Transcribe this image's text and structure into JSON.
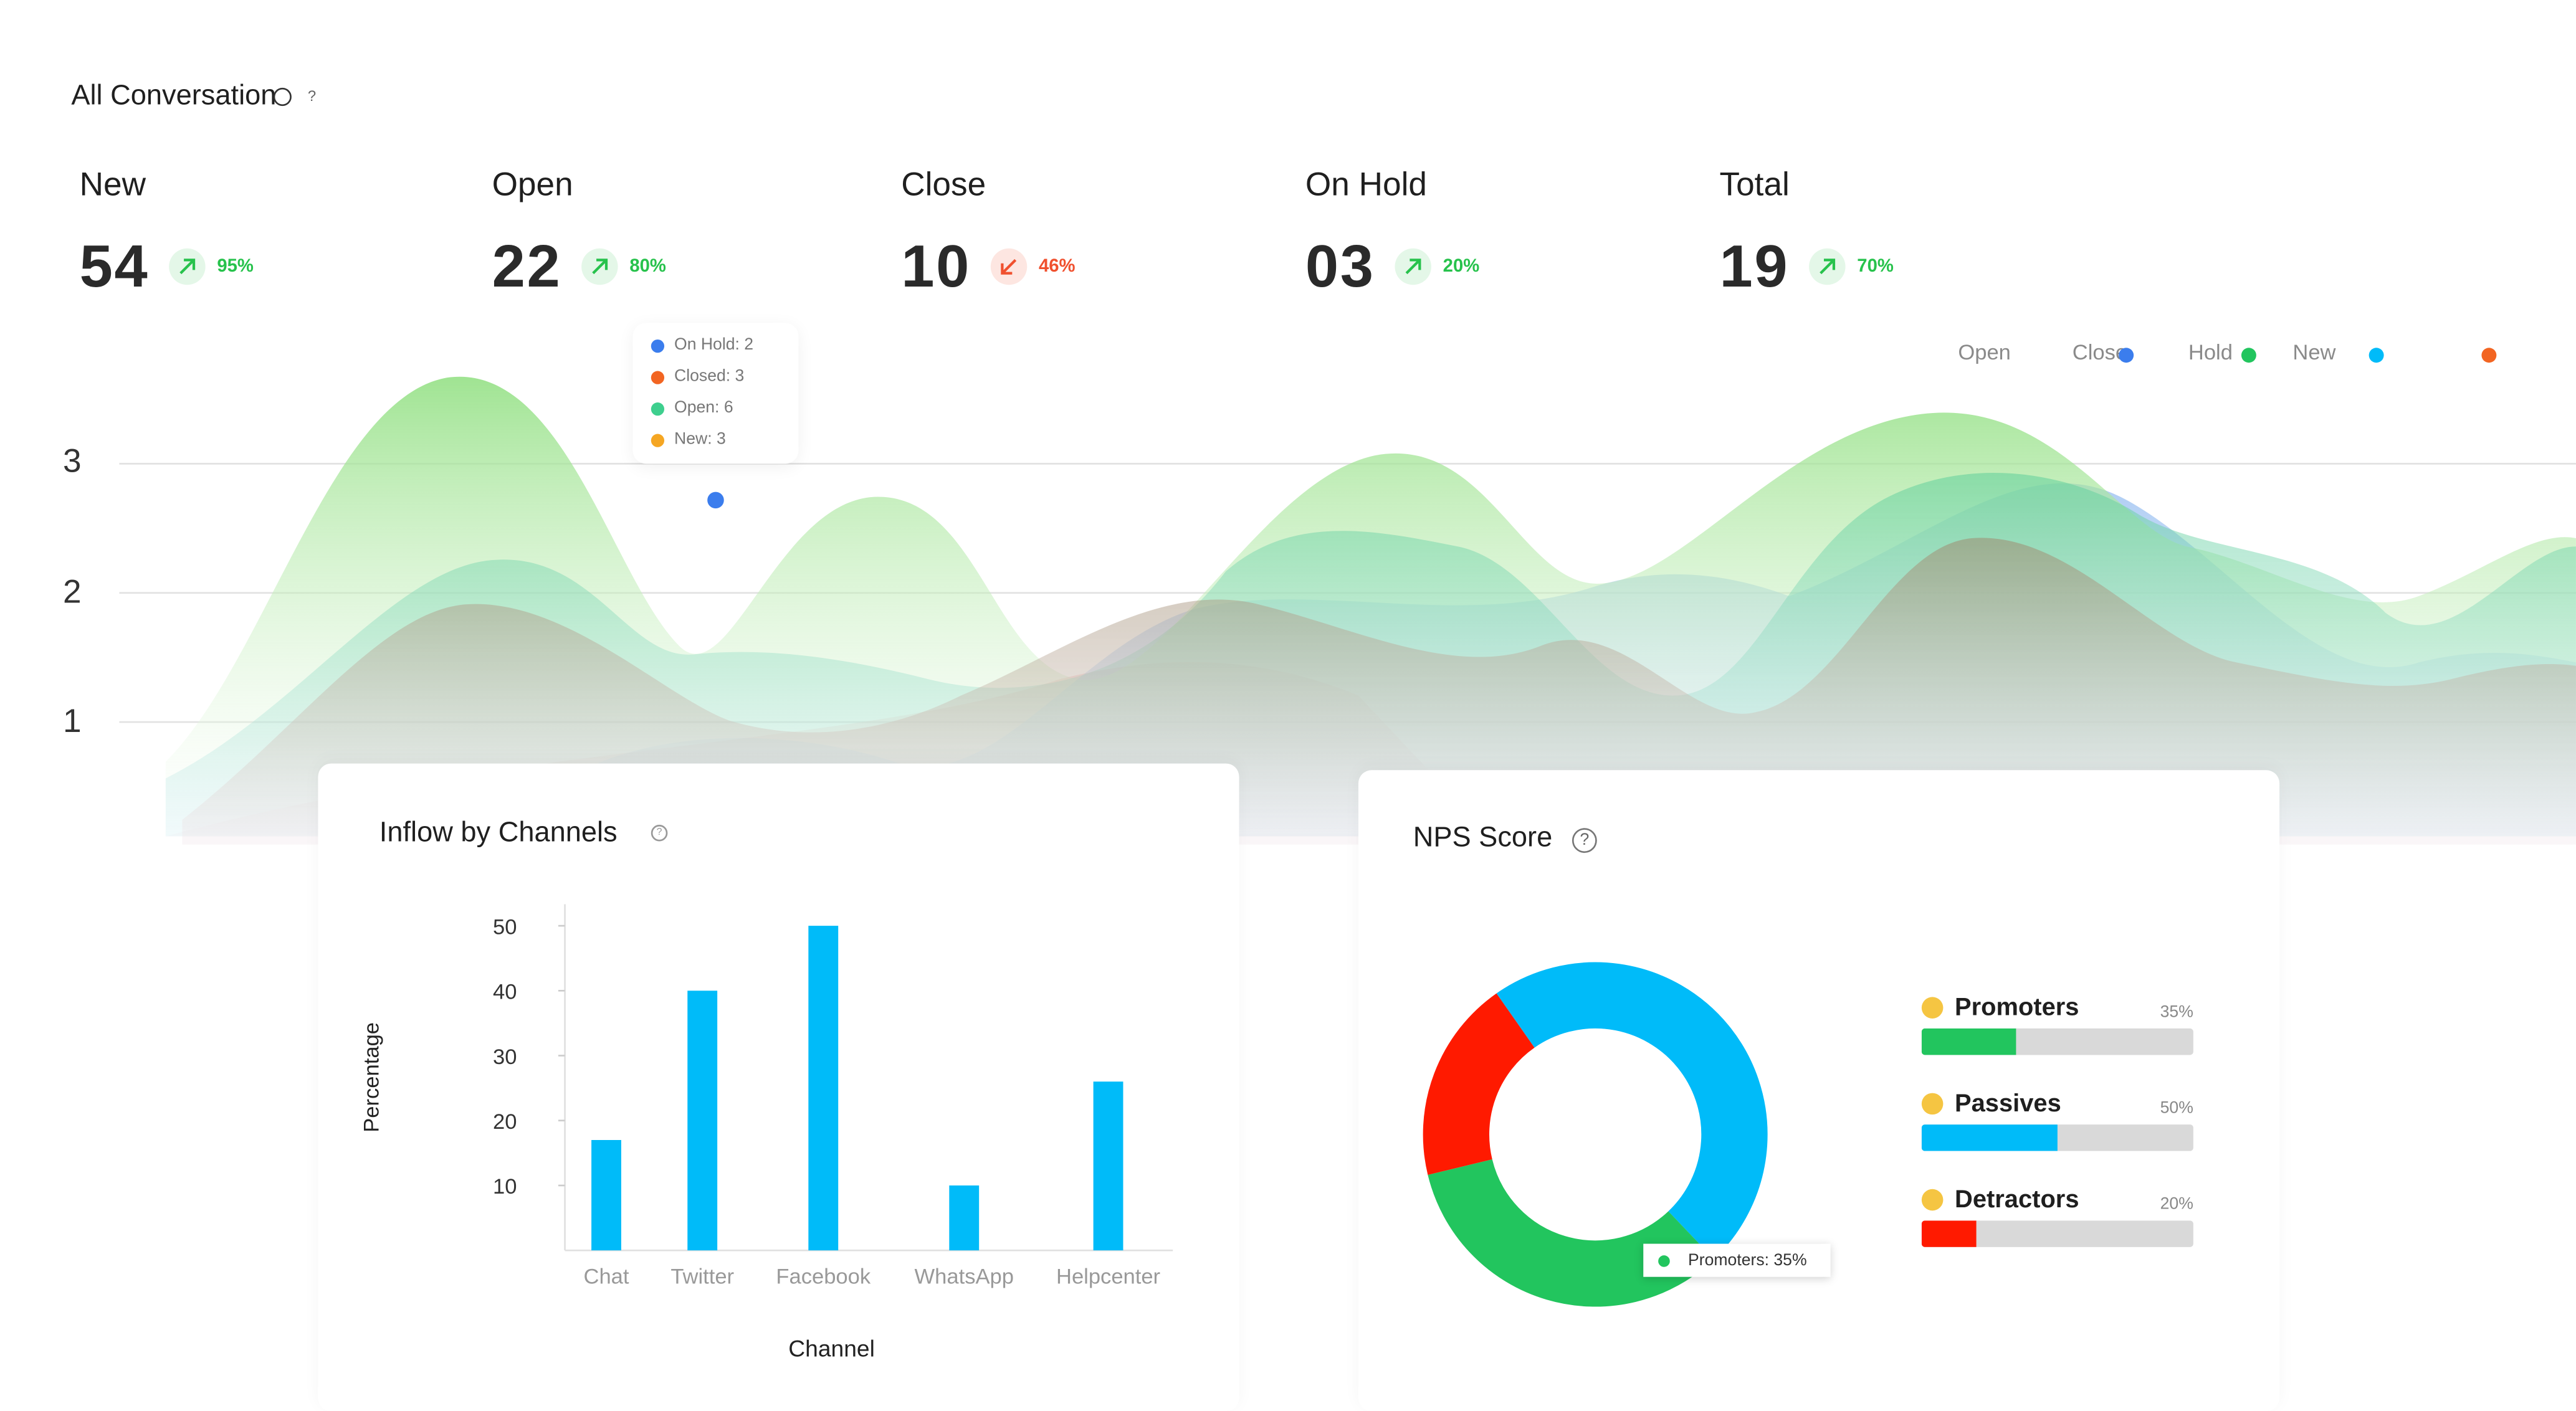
{
  "header": {
    "title": "All Conversation",
    "help": "?"
  },
  "stats": [
    {
      "label": "New",
      "value": "54",
      "trend": "up",
      "pct": "95%"
    },
    {
      "label": "Open",
      "value": "22",
      "trend": "up",
      "pct": "80%"
    },
    {
      "label": "Close",
      "value": "10",
      "trend": "down",
      "pct": "46%"
    },
    {
      "label": "On Hold",
      "value": "03",
      "trend": "up",
      "pct": "20%"
    },
    {
      "label": "Total",
      "value": "19",
      "trend": "up",
      "pct": "70%"
    }
  ],
  "colors": {
    "up": "#27c24c",
    "up_bg": "#e4f7e8",
    "down": "#f0502e",
    "down_bg": "#fde6e1",
    "cyan": "#00bbf9",
    "green": "#22c55e",
    "red": "#ff1a00",
    "blue": "#3b7ded",
    "orange": "#f26522",
    "amber": "#f5a623"
  },
  "area_legend": [
    {
      "label": "Open",
      "color": "#3b7ded"
    },
    {
      "label": "Close",
      "color": "#22c55e"
    },
    {
      "label": "Hold",
      "color": "#00bbf9"
    },
    {
      "label": "New",
      "color": "#f26522"
    }
  ],
  "area_yticks": [
    "3",
    "2",
    "1"
  ],
  "tooltip": [
    {
      "text": "On Hold: 2",
      "color": "#3b7ded"
    },
    {
      "text": "Closed: 3",
      "color": "#f26522"
    },
    {
      "text": "Open: 6",
      "color": "#3ecf8e"
    },
    {
      "text": "New: 3",
      "color": "#f5a623"
    }
  ],
  "inflow": {
    "title": "Inflow by Channels",
    "help": "?"
  },
  "nps": {
    "title": "NPS Score",
    "help": "?",
    "tooltip": "Promoters: 35%",
    "rows": [
      {
        "label": "Promoters",
        "pct": "35%",
        "value": 0.35,
        "color": "#22c55e"
      },
      {
        "label": "Passives",
        "pct": "50%",
        "value": 0.5,
        "color": "#00bbf9"
      },
      {
        "label": "Detractors",
        "pct": "20%",
        "value": 0.2,
        "color": "#ff1a00"
      }
    ]
  },
  "chart_data": [
    {
      "type": "bar",
      "title": "Inflow by Channels",
      "xlabel": "Channel",
      "ylabel": "Percentage",
      "categories": [
        "Chat",
        "Twitter",
        "Facebook",
        "WhatsApp",
        "Helpcenter"
      ],
      "values": [
        17,
        40,
        50,
        10,
        26
      ],
      "yticks": [
        50,
        40,
        30,
        20,
        10
      ],
      "ylim": [
        0,
        50
      ],
      "color": "#00bbf9",
      "grid": false
    },
    {
      "type": "pie",
      "title": "NPS Score",
      "donut": true,
      "slices": [
        {
          "name": "Promoters",
          "value": 35,
          "color": "#22c55e"
        },
        {
          "name": "Passives",
          "value": 50,
          "color": "#00bbf9"
        },
        {
          "name": "Detractors",
          "value": 20,
          "color": "#ff1a00"
        }
      ]
    },
    {
      "type": "area",
      "yticks": [
        3,
        2,
        1
      ],
      "legend_position": "top-right",
      "grid": true
    }
  ]
}
